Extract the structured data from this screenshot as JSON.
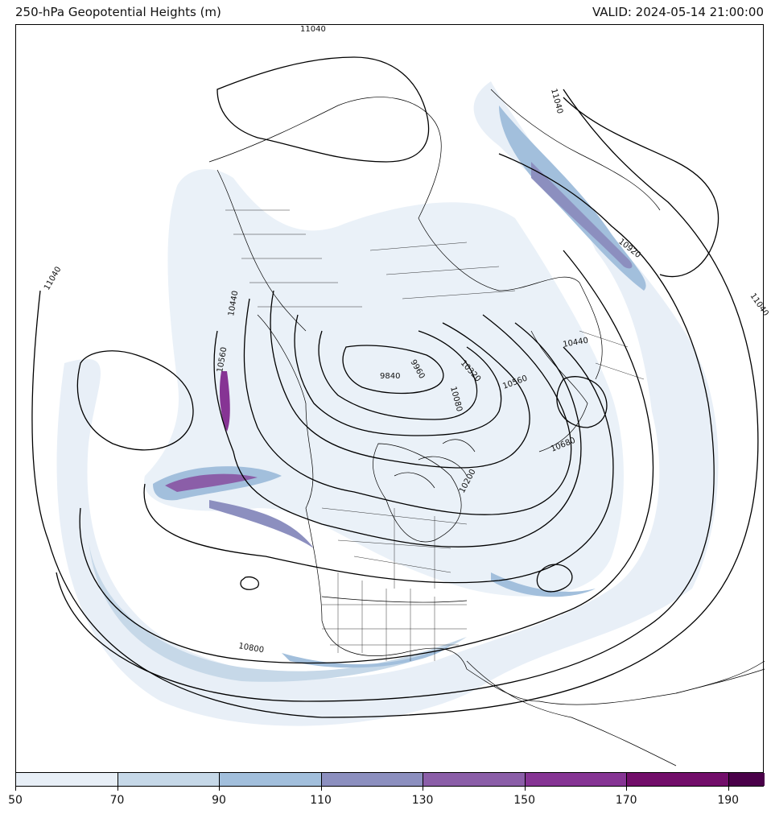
{
  "header": {
    "title": "250-hPa Geopotential Heights (m)",
    "valid": "VALID: 2024-05-14 21:00:00"
  },
  "colorbar": {
    "colors": [
      "#e8eff7",
      "#c6d8e8",
      "#a2bfdc",
      "#8c8fbf",
      "#8b5ea8",
      "#863494",
      "#720e6a",
      "#4a0049"
    ],
    "tick_labels": [
      "50",
      "70",
      "90",
      "110",
      "130",
      "150",
      "170",
      "190"
    ]
  },
  "contour_labels": [
    "11040",
    "11040",
    "11040",
    "10920",
    "11040",
    "10440",
    "10560",
    "9840",
    "9960",
    "10320",
    "10080",
    "10440",
    "10560",
    "10680",
    "10200",
    "10800"
  ]
}
